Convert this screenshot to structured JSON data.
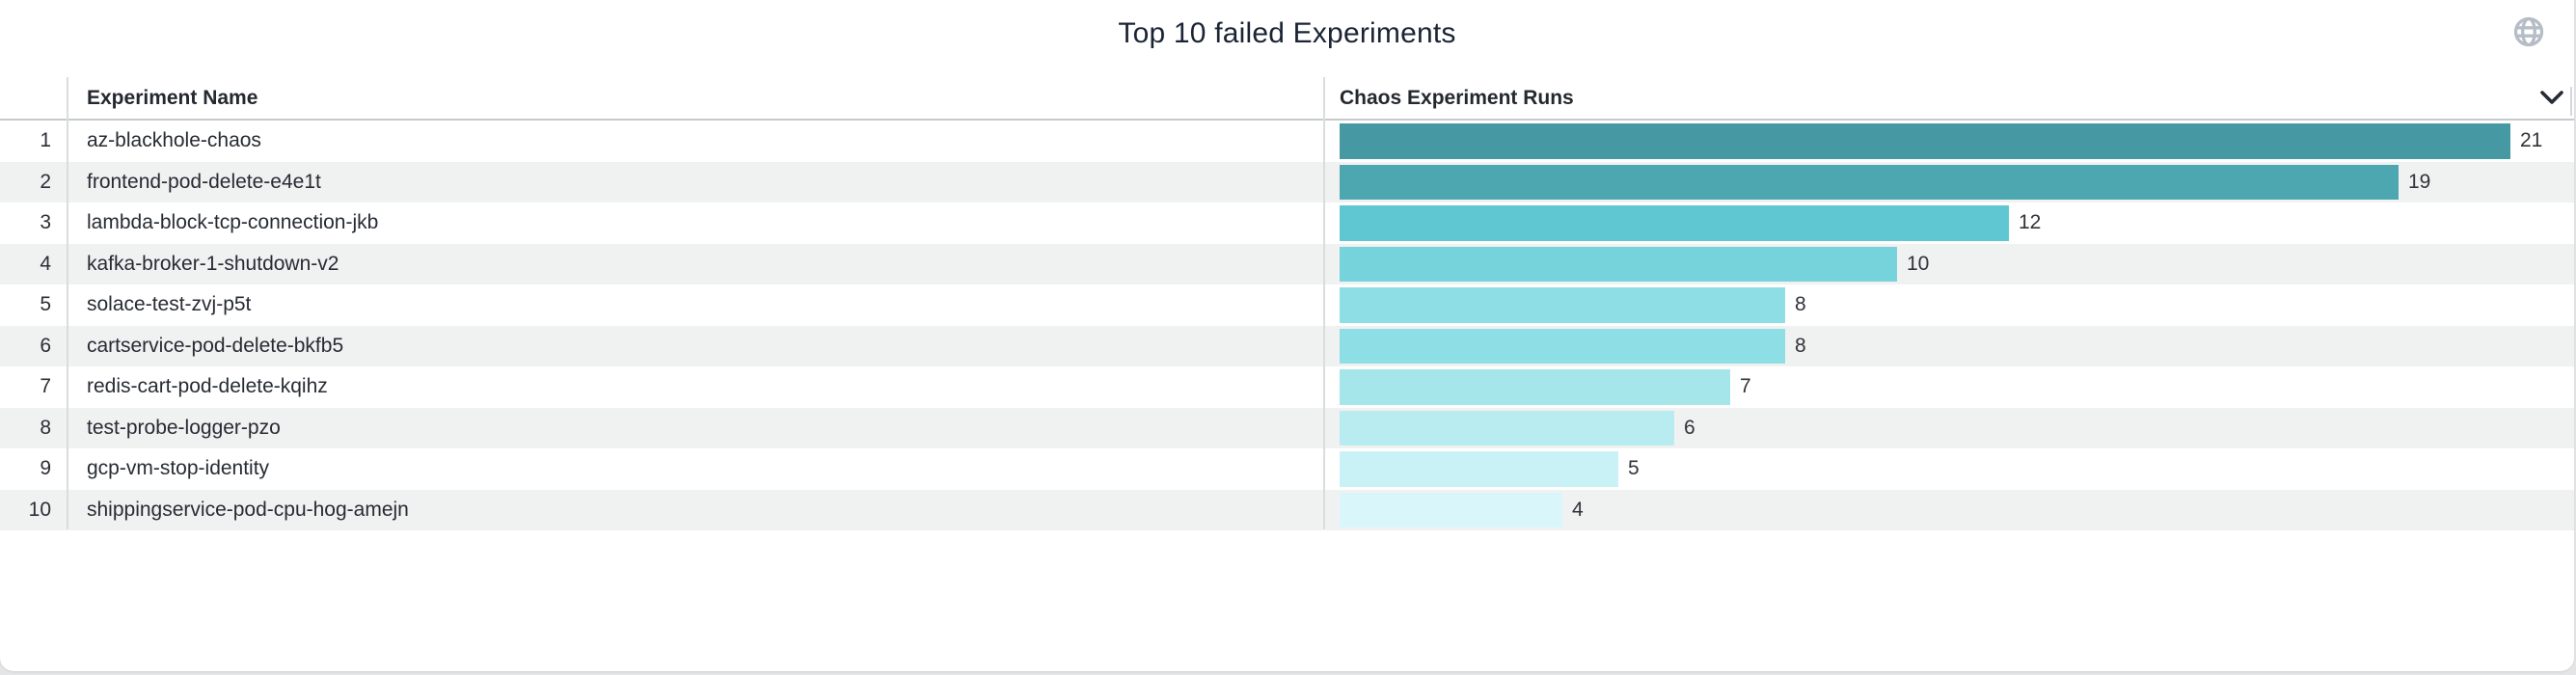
{
  "title": "Top 10 failed Experiments",
  "table": {
    "name_header": "Experiment Name",
    "runs_header": "Chaos Experiment Runs"
  },
  "icons": {
    "globe": "globe-icon",
    "sort": "chevron-down-icon"
  },
  "colors": {
    "title_text": "#1b2434",
    "header_text": "#24292f",
    "row_text": "#272c33",
    "row_stripe": "#f0f1f1",
    "row_white": "#ffffff",
    "divider": "#dadcde",
    "header_border": "#c6cacd",
    "globe_icon": "#b6bdc7",
    "chevron_icon": "#262c35",
    "page_background": "#e4e5e6",
    "bar_darkest": "#4699a3",
    "bar_lightest": "#d9f7fb"
  },
  "chart_data": {
    "type": "bar",
    "orientation": "horizontal",
    "title": "Top 10 failed Experiments",
    "xlabel": "Chaos Experiment Runs",
    "ylabel": "Experiment Name",
    "ranks": [
      "1",
      "2",
      "3",
      "4",
      "5",
      "6",
      "7",
      "8",
      "9",
      "10"
    ],
    "categories": [
      "az-blackhole-chaos",
      "frontend-pod-delete-e4e1t",
      "lambda-block-tcp-connection-jkb",
      "kafka-broker-1-shutdown-v2",
      "solace-test-zvj-p5t",
      "cartservice-pod-delete-bkfb5",
      "redis-cart-pod-delete-kqihz",
      "test-probe-logger-pzo",
      "gcp-vm-stop-identity",
      "shippingservice-pod-cpu-hog-amejn"
    ],
    "values": [
      21,
      19,
      12,
      10,
      8,
      8,
      7,
      6,
      5,
      4
    ],
    "bar_colors": [
      "#4699a3",
      "#4da7b0",
      "#5ec7d1",
      "#76d3dc",
      "#8edee5",
      "#8edee5",
      "#a5e6eb",
      "#b8ecf0",
      "#c9f2f6",
      "#d9f7fb"
    ],
    "xlim": [
      0,
      21
    ],
    "value_labels": true,
    "legend": false,
    "grid": false
  }
}
